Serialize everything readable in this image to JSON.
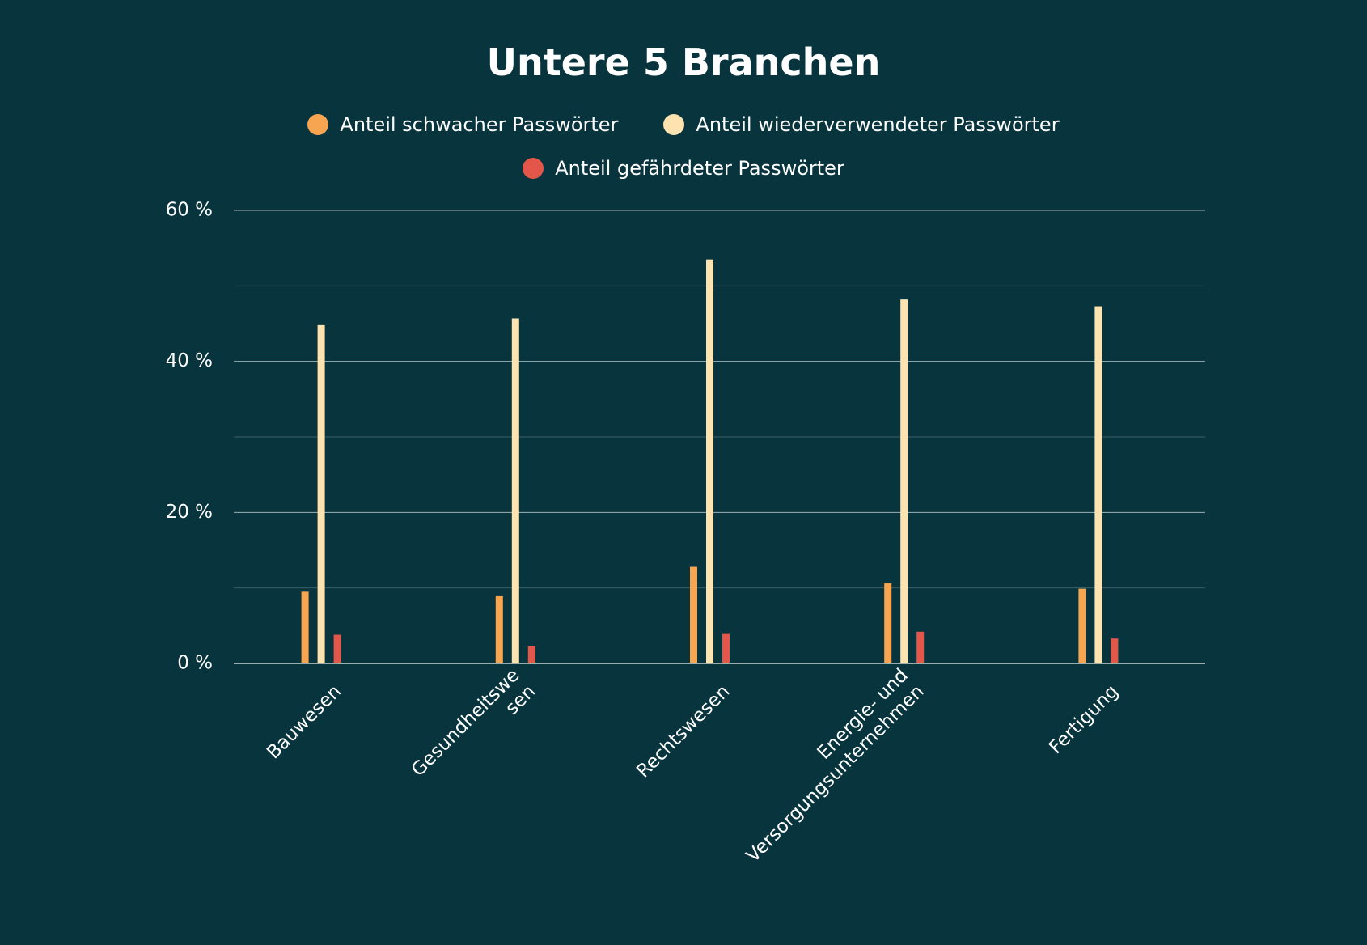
{
  "chart_data": {
    "type": "bar",
    "title": "Untere 5 Branchen",
    "categories": [
      [
        "Bauwesen"
      ],
      [
        "Gesundheitswe",
        "sen"
      ],
      [
        "Rechtswesen"
      ],
      [
        "Energie- und",
        "Versorgungsunternehmen"
      ],
      [
        "Fertigung"
      ]
    ],
    "series": [
      {
        "name": "Anteil schwacher Passwörter",
        "color": "#f7a550",
        "values": [
          9.5,
          8.9,
          12.8,
          10.6,
          9.9
        ]
      },
      {
        "name": "Anteil wiederverwendeter Passwörter",
        "color": "#fde3b0",
        "values": [
          44.8,
          45.7,
          53.5,
          48.2,
          47.3
        ]
      },
      {
        "name": "Anteil gefährdeter Passwörter",
        "color": "#e3574a",
        "values": [
          3.8,
          2.3,
          4.0,
          4.2,
          3.3
        ]
      }
    ],
    "ylim": [
      0,
      60
    ],
    "yticks": [
      {
        "value": 0,
        "label": "0 %"
      },
      {
        "value": 20,
        "label": "20 %"
      },
      {
        "value": 40,
        "label": "40 %"
      },
      {
        "value": 60,
        "label": "60 %"
      }
    ],
    "minor_yticks": [
      10,
      30,
      50
    ],
    "grid": true
  }
}
